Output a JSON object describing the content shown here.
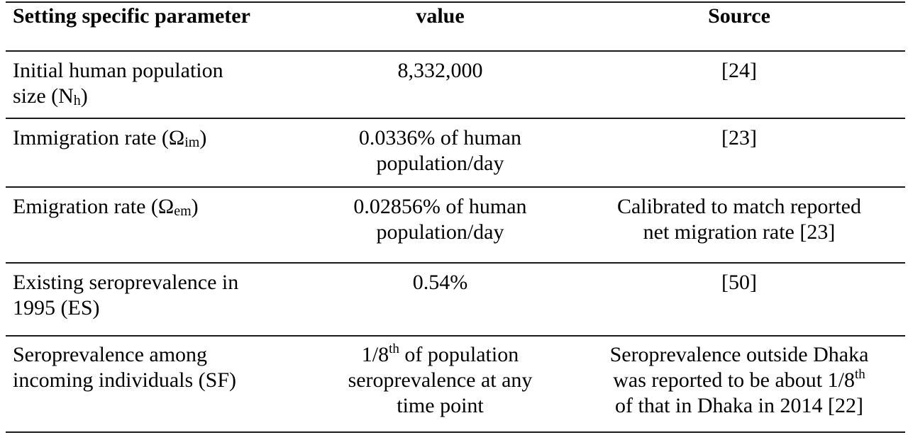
{
  "header": {
    "col1": "Setting specific parameter",
    "col2": "value",
    "col3": "Source"
  },
  "rows": [
    {
      "param_line1": "Initial human population",
      "param_line2_pre": "size (N",
      "param_line2_sub": "h",
      "param_line2_post": ")",
      "value_line1": "8,332,000",
      "source_line1": "[24]"
    },
    {
      "param_pre": "Immigration rate (Ω",
      "param_sub": "im",
      "param_post": ")",
      "value_line1": "0.0336% of human",
      "value_line2": "population/day",
      "source_line1": "[23]"
    },
    {
      "param_pre": "Emigration rate (Ω",
      "param_sub": "em",
      "param_post": ")",
      "value_line1": "0.02856% of human",
      "value_line2": "population/day",
      "source_line1": "Calibrated to match reported",
      "source_line2": "net migration rate [23]"
    },
    {
      "param_line1": "Existing seroprevalence in",
      "param_line2": "1995 (ES)",
      "value_line1": "0.54%",
      "source_line1": "[50]"
    },
    {
      "param_line1": "Seroprevalence among",
      "param_line2": "incoming individuals (SF)",
      "value_line1_pre": "1/8",
      "value_line1_sup": "th",
      "value_line1_post": " of population",
      "value_line2": "seroprevalence at any",
      "value_line3": "time point",
      "source_line1": "Seroprevalence outside Dhaka",
      "source_line2_pre": "was reported to be about 1/8",
      "source_line2_sup": "th",
      "source_line3": "of that in Dhaka in 2014 [22]"
    }
  ]
}
